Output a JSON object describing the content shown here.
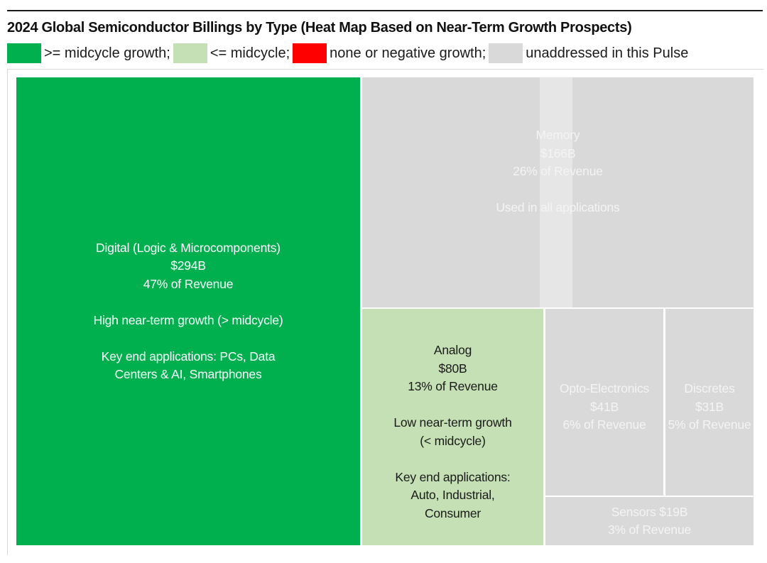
{
  "chart_data": {
    "type": "treemap",
    "title": "2024 Global Semiconductor Billings by Type (Heat Map Based on Near-Term Growth Prospects)",
    "legend": [
      {
        "label": ">= midcycle growth;",
        "color": "#00b04f"
      },
      {
        "label": "<= midcycle;",
        "color": "#c5e0b4"
      },
      {
        "label": "none or negative growth;",
        "color": "#ff0000"
      },
      {
        "label": "unaddressed in this Pulse",
        "color": "#d9d9d9"
      }
    ],
    "items": [
      {
        "name": "Digital (Logic & Microcomponents)",
        "value": "$294B",
        "share": "47% of Revenue",
        "value_billions": 294,
        "share_pct": 47,
        "growth": "High near-term growth (> midcycle)",
        "applications": "Key end applications: PCs, Data Centers & AI, Smartphones",
        "color": "#00b04f"
      },
      {
        "name": "Memory",
        "value": "$166B",
        "share": "26% of Revenue",
        "value_billions": 166,
        "share_pct": 26,
        "note": "Used in all applications",
        "color": "#d9d9d9"
      },
      {
        "name": "Analog",
        "value": "$80B",
        "share": "13% of Revenue",
        "value_billions": 80,
        "share_pct": 13,
        "growth_line1": "Low near-term growth",
        "growth_line2": "(< midcycle)",
        "app_line1": "Key end applications:",
        "app_line2": "Auto, Industrial,",
        "app_line3": "Consumer",
        "color": "#c5e0b4"
      },
      {
        "name": "Opto-Electronics",
        "value": "$41B",
        "share": "6% of Revenue",
        "value_billions": 41,
        "share_pct": 6,
        "color": "#d9d9d9"
      },
      {
        "name": "Discretes",
        "value": "$31B",
        "share": "5% of Revenue",
        "value_billions": 31,
        "share_pct": 5,
        "color": "#d9d9d9"
      },
      {
        "name": "Sensors",
        "label": "Sensors $19B",
        "share": "3% of Revenue",
        "value_billions": 19,
        "share_pct": 3,
        "color": "#d9d9d9"
      }
    ]
  }
}
